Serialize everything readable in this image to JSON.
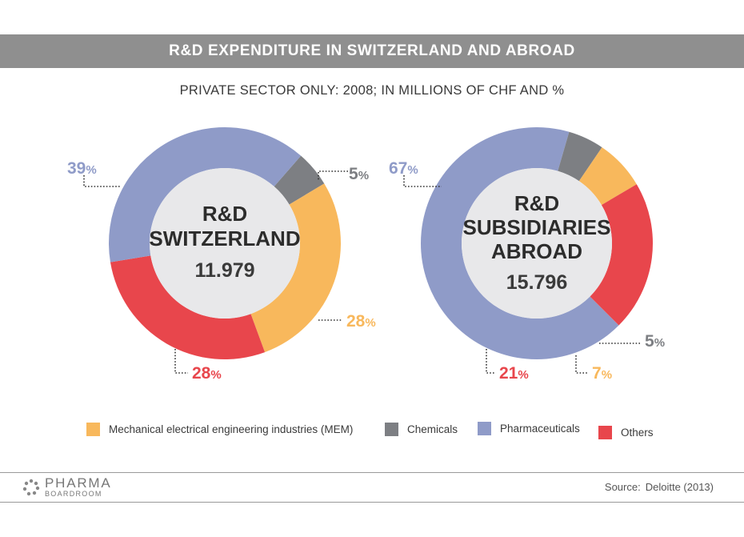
{
  "header": {
    "title": "R&D EXPENDITURE IN SWITZERLAND AND ABROAD",
    "subtitle": "PRIVATE SECTOR ONLY: 2008; IN MILLIONS OF CHF AND %"
  },
  "colors": {
    "mem": "#f8b85c",
    "chemicals": "#7d7f83",
    "pharmaceuticals": "#8f9bc8",
    "others": "#e8464c",
    "center": "#e8e8ea",
    "title_bar": "#8f8f8f"
  },
  "chart_data": [
    {
      "type": "pie",
      "center_lines": [
        "R&D",
        "SWITZERLAND"
      ],
      "total": "11.979",
      "slices": [
        {
          "name": "Chemicals",
          "value": 5,
          "label": "5"
        },
        {
          "name": "Mechanical electrical engineering industries (MEM)",
          "value": 28,
          "label": "28"
        },
        {
          "name": "Others",
          "value": 28,
          "label": "28"
        },
        {
          "name": "Pharmaceuticals",
          "value": 39,
          "label": "39"
        }
      ]
    },
    {
      "type": "pie",
      "center_lines": [
        "R&D",
        "SUBSIDIARIES",
        "ABROAD"
      ],
      "total": "15.796",
      "slices": [
        {
          "name": "Pharmaceuticals",
          "value": 67,
          "label": "67"
        },
        {
          "name": "Chemicals",
          "value": 5,
          "label": "5"
        },
        {
          "name": "Mechanical electrical engineering industries (MEM)",
          "value": 7,
          "label": "7"
        },
        {
          "name": "Others",
          "value": 21,
          "label": "21"
        }
      ]
    }
  ],
  "legend": [
    {
      "label": "Mechanical electrical engineering industries (MEM)",
      "color": "#f8b85c"
    },
    {
      "label": "Chemicals",
      "color": "#7d7f83"
    },
    {
      "label": "Pharmaceuticals",
      "color": "#8f9bc8"
    },
    {
      "label": "Others",
      "color": "#e8464c"
    }
  ],
  "footer": {
    "logo_main": "PHARMA",
    "logo_sub": "BOARDROOM",
    "source_label": "Source:",
    "source_value": "Deloitte (2013)"
  }
}
